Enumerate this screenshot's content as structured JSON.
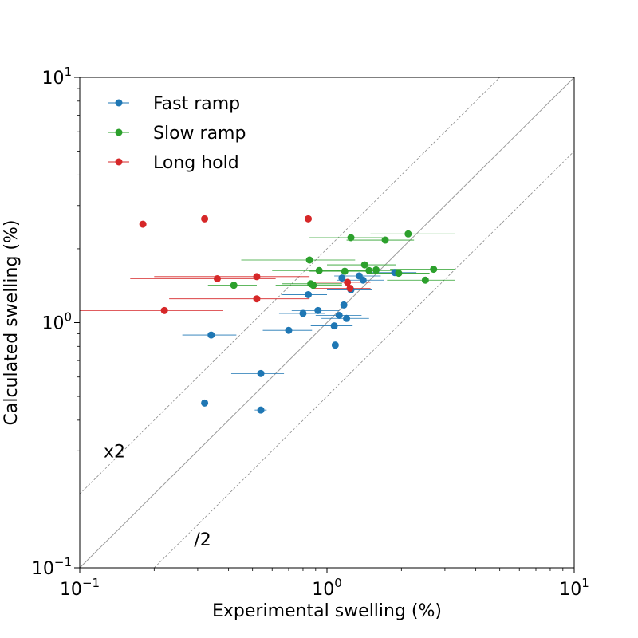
{
  "chart_data": {
    "type": "scatter",
    "title": "",
    "xlabel": "Experimental swelling (%)",
    "ylabel": "Calculated swelling (%)",
    "xscale": "log",
    "yscale": "log",
    "xlim": [
      0.1,
      10
    ],
    "ylim": [
      0.1,
      10
    ],
    "x_ticks": [
      {
        "value": 0.1,
        "base": "10",
        "exp": "−1"
      },
      {
        "value": 1,
        "base": "10",
        "exp": "0"
      },
      {
        "value": 10,
        "base": "10",
        "exp": "1"
      }
    ],
    "y_ticks": [
      {
        "value": 0.1,
        "base": "10",
        "exp": "−1"
      },
      {
        "value": 1,
        "base": "10",
        "exp": "0"
      },
      {
        "value": 10,
        "base": "10",
        "exp": "1"
      }
    ],
    "grid": false,
    "legend_position": "top-left",
    "reference_lines": [
      {
        "factor": 1,
        "style": "solid",
        "label": ""
      },
      {
        "factor": 2,
        "style": "dashed",
        "label": "x2",
        "label_at": [
          0.125,
          0.3
        ]
      },
      {
        "factor": 0.5,
        "style": "dashed",
        "label": "/2",
        "label_at": [
          0.29,
          0.131
        ]
      }
    ],
    "series": [
      {
        "name": "Fast ramp",
        "color": "#1f77b4",
        "points": [
          {
            "x": 0.32,
            "y": 0.47,
            "xmin": 0.32,
            "xmax": 0.32
          },
          {
            "x": 0.34,
            "y": 0.89,
            "xmin": 0.26,
            "xmax": 0.43
          },
          {
            "x": 0.54,
            "y": 0.44,
            "xmin": 0.51,
            "xmax": 0.57
          },
          {
            "x": 0.54,
            "y": 0.62,
            "xmin": 0.41,
            "xmax": 0.67
          },
          {
            "x": 0.7,
            "y": 0.93,
            "xmin": 0.55,
            "xmax": 0.87
          },
          {
            "x": 0.8,
            "y": 1.09,
            "xmin": 0.64,
            "xmax": 0.98
          },
          {
            "x": 0.84,
            "y": 1.3,
            "xmin": 0.66,
            "xmax": 1.0
          },
          {
            "x": 0.92,
            "y": 1.12,
            "xmin": 0.72,
            "xmax": 1.12
          },
          {
            "x": 1.07,
            "y": 0.97,
            "xmin": 0.86,
            "xmax": 1.27
          },
          {
            "x": 1.08,
            "y": 0.81,
            "xmin": 0.82,
            "xmax": 1.35
          },
          {
            "x": 1.12,
            "y": 1.07,
            "xmin": 0.9,
            "xmax": 1.38
          },
          {
            "x": 1.15,
            "y": 1.52,
            "xmin": 0.9,
            "xmax": 1.45
          },
          {
            "x": 1.17,
            "y": 1.18,
            "xmin": 0.9,
            "xmax": 1.45
          },
          {
            "x": 1.2,
            "y": 1.04,
            "xmin": 0.95,
            "xmax": 1.48
          },
          {
            "x": 1.25,
            "y": 1.36,
            "xmin": 1.0,
            "xmax": 1.52
          },
          {
            "x": 1.35,
            "y": 1.55,
            "xmin": 1.07,
            "xmax": 1.65
          },
          {
            "x": 1.4,
            "y": 1.49,
            "xmin": 1.1,
            "xmax": 1.7
          },
          {
            "x": 1.88,
            "y": 1.6,
            "xmin": 1.5,
            "xmax": 2.3
          }
        ]
      },
      {
        "name": "Slow ramp",
        "color": "#2ca02c",
        "points": [
          {
            "x": 0.42,
            "y": 1.42,
            "xmin": 0.33,
            "xmax": 0.52
          },
          {
            "x": 0.85,
            "y": 1.8,
            "xmin": 0.45,
            "xmax": 1.3
          },
          {
            "x": 0.86,
            "y": 1.44,
            "xmin": 0.66,
            "xmax": 1.15
          },
          {
            "x": 0.88,
            "y": 1.42,
            "xmin": 0.62,
            "xmax": 1.15
          },
          {
            "x": 0.93,
            "y": 1.63,
            "xmin": 0.6,
            "xmax": 1.25
          },
          {
            "x": 1.18,
            "y": 1.62,
            "xmin": 0.85,
            "xmax": 1.5
          },
          {
            "x": 1.25,
            "y": 2.22,
            "xmin": 0.85,
            "xmax": 1.7
          },
          {
            "x": 1.42,
            "y": 1.72,
            "xmin": 1.0,
            "xmax": 1.9
          },
          {
            "x": 1.48,
            "y": 1.63,
            "xmin": 1.1,
            "xmax": 1.95
          },
          {
            "x": 1.58,
            "y": 1.64,
            "xmin": 1.15,
            "xmax": 2.05
          },
          {
            "x": 1.72,
            "y": 2.17,
            "xmin": 1.2,
            "xmax": 2.25
          },
          {
            "x": 1.95,
            "y": 1.59,
            "xmin": 1.45,
            "xmax": 2.6
          },
          {
            "x": 2.13,
            "y": 2.3,
            "xmin": 1.5,
            "xmax": 3.3
          },
          {
            "x": 2.5,
            "y": 1.49,
            "xmin": 1.75,
            "xmax": 3.3
          },
          {
            "x": 2.7,
            "y": 1.65,
            "xmin": 1.8,
            "xmax": 3.3
          }
        ]
      },
      {
        "name": "Long hold",
        "color": "#d62728",
        "points": [
          {
            "x": 0.18,
            "y": 2.52,
            "xmin": 0.18,
            "xmax": 0.18
          },
          {
            "x": 0.22,
            "y": 1.12,
            "xmin": 0.1,
            "xmax": 0.38
          },
          {
            "x": 0.32,
            "y": 2.65,
            "xmin": 0.16,
            "xmax": 0.52
          },
          {
            "x": 0.36,
            "y": 1.51,
            "xmin": 0.16,
            "xmax": 0.62
          },
          {
            "x": 0.52,
            "y": 1.54,
            "xmin": 0.2,
            "xmax": 0.85
          },
          {
            "x": 0.52,
            "y": 1.25,
            "xmin": 0.23,
            "xmax": 0.85
          },
          {
            "x": 0.84,
            "y": 2.65,
            "xmin": 0.52,
            "xmax": 1.28
          },
          {
            "x": 1.21,
            "y": 1.46,
            "xmin": 0.85,
            "xmax": 1.5
          },
          {
            "x": 1.24,
            "y": 1.38,
            "xmin": 0.88,
            "xmax": 1.5
          }
        ]
      }
    ]
  }
}
